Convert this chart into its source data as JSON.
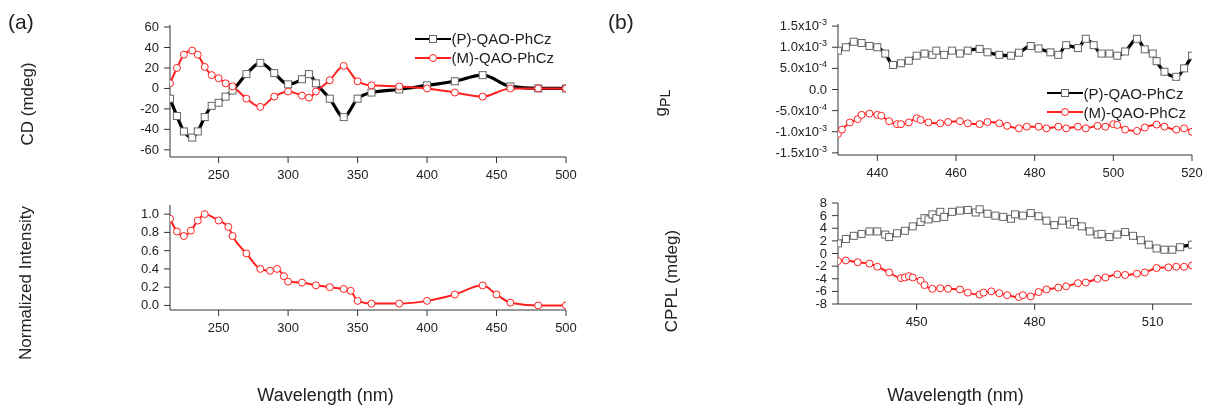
{
  "chart_data": [
    {
      "type": "line",
      "ylabel": "CD (mdeg)",
      "annotations": [
        "(a)"
      ],
      "xlim": [
        215,
        500
      ],
      "xticks": [
        250,
        300,
        350,
        400,
        450,
        500
      ],
      "ylim": [
        -67,
        62
      ],
      "yticks": [
        -60,
        -40,
        -20,
        0,
        20,
        40,
        60
      ],
      "legend": "top right",
      "line_style": "solid",
      "x": [
        215,
        220,
        225,
        231,
        235,
        240,
        245,
        250,
        255,
        260,
        270,
        280,
        290,
        300,
        310,
        315,
        320,
        330,
        340,
        350,
        360,
        380,
        400,
        420,
        440,
        460,
        480,
        500
      ],
      "series": [
        {
          "name": "(P)-QAO-PhCz",
          "color": "#000000",
          "marker": "square",
          "values": [
            -10,
            -27,
            -42,
            -48,
            -42,
            -28,
            -17,
            -14,
            -8,
            -2,
            14,
            25,
            15,
            4,
            9,
            14,
            5,
            -10,
            -28,
            -10,
            -4,
            -1,
            3,
            7,
            13,
            2,
            0,
            0
          ]
        },
        {
          "name": "(M)-QAO-PhCz",
          "color": "#ff2020",
          "marker": "circle",
          "values": [
            5,
            20,
            33,
            37,
            33,
            21,
            13,
            10,
            5,
            2,
            -10,
            -18,
            -8,
            -3,
            -7,
            -9,
            -3,
            8,
            22,
            7,
            3,
            2,
            0,
            -4,
            -8,
            0,
            0,
            0
          ]
        }
      ]
    },
    {
      "type": "line",
      "xlabel": "Wavelength (nm)",
      "ylabel": "Normalized Intensity",
      "xlim": [
        215,
        500
      ],
      "xticks": [
        250,
        300,
        350,
        400,
        450,
        500
      ],
      "ylim": [
        -0.05,
        1.1
      ],
      "yticks": [
        {
          "value": 0,
          "label": "0.0"
        },
        0.2,
        0.4,
        0.6,
        0.8,
        {
          "value": 1,
          "label": "1.0"
        }
      ],
      "line_style": "solid",
      "x": [
        215,
        220,
        225,
        230,
        235,
        240,
        250,
        257,
        260,
        270,
        280,
        287,
        292,
        297,
        300,
        310,
        320,
        330,
        340,
        345,
        350,
        360,
        380,
        400,
        420,
        440,
        450,
        460,
        480,
        500
      ],
      "series": [
        {
          "color": "#ff2020",
          "marker": "circle",
          "values": [
            0.95,
            0.81,
            0.76,
            0.82,
            0.93,
            1.0,
            0.93,
            0.86,
            0.76,
            0.57,
            0.4,
            0.38,
            0.4,
            0.32,
            0.26,
            0.25,
            0.22,
            0.2,
            0.18,
            0.16,
            0.05,
            0.02,
            0.02,
            0.05,
            0.12,
            0.22,
            0.12,
            0.03,
            0.0,
            0.0
          ]
        }
      ]
    },
    {
      "type": "line",
      "ylabel": "g$_{PL}$",
      "annotations": [
        "(b)"
      ],
      "xlim": [
        430,
        520
      ],
      "xticks": [
        440,
        460,
        480,
        500,
        520
      ],
      "ylim": [
        -0.00155,
        0.00155
      ],
      "yticks": [
        {
          "value": -0.0015,
          "label": "-1.5x10$^{-3}$"
        },
        {
          "value": -0.001,
          "label": "-1.0x10$^{-3}$"
        },
        {
          "value": -0.0005,
          "label": "-5.0x10$^{-4}$"
        },
        {
          "value": 0,
          "label": "0.0"
        },
        {
          "value": 0.0005,
          "label": "5.0x10$^{-4}$"
        },
        {
          "value": 0.001,
          "label": "1.0x10$^{-3}$"
        },
        {
          "value": 0.0015,
          "label": "1.5x10$^{-3}$"
        }
      ],
      "legend": "right",
      "line_style": "solid",
      "series": [
        {
          "name": "(P)-QAO-PhCz",
          "color": "#000000",
          "marker": "square",
          "x": [
            430,
            432,
            434,
            436,
            438,
            440,
            442,
            444,
            446,
            448,
            450,
            452,
            454,
            455,
            457,
            459,
            461,
            463,
            466,
            468,
            471,
            474,
            476,
            479,
            481,
            484,
            486,
            488,
            491,
            493,
            495,
            497,
            499,
            501,
            503,
            506,
            508,
            510,
            511,
            513,
            516,
            518,
            520
          ],
          "values": [
            0.00092,
            0.001,
            0.00113,
            0.0011,
            0.00103,
            0.001,
            0.00085,
            0.00058,
            0.00062,
            0.00068,
            0.0008,
            0.00085,
            0.00082,
            0.00092,
            0.00082,
            0.00092,
            0.00085,
            0.00092,
            0.00096,
            0.00088,
            0.00082,
            0.0008,
            0.00087,
            0.00103,
            0.00097,
            0.00088,
            0.00082,
            0.00105,
            0.00098,
            0.0012,
            0.00105,
            0.00085,
            0.00085,
            0.0008,
            0.0009,
            0.0012,
            0.00095,
            0.00085,
            0.00067,
            0.00042,
            0.0003,
            0.0005,
            0.0008
          ]
        },
        {
          "name": "(M)-QAO-PhCz",
          "color": "#ff2020",
          "marker": "circle",
          "x": [
            430,
            431,
            433,
            435,
            436,
            438,
            440,
            441,
            443,
            445,
            446,
            448,
            450,
            451,
            453,
            456,
            458,
            461,
            463,
            466,
            468,
            471,
            473,
            476,
            478,
            481,
            483,
            486,
            488,
            491,
            493,
            496,
            498,
            500,
            501,
            503,
            506,
            508,
            511,
            513,
            516,
            518,
            520
          ],
          "values": [
            -0.00105,
            -0.00095,
            -0.00078,
            -0.0007,
            -0.0006,
            -0.00057,
            -0.0006,
            -0.00062,
            -0.00075,
            -0.00082,
            -0.00082,
            -0.00078,
            -0.00068,
            -0.00072,
            -0.00078,
            -0.0008,
            -0.00077,
            -0.00075,
            -0.0008,
            -0.00082,
            -0.00077,
            -0.0008,
            -0.00086,
            -0.00092,
            -0.00088,
            -0.00088,
            -0.00092,
            -0.00088,
            -0.00092,
            -0.00088,
            -0.00092,
            -0.00086,
            -0.00088,
            -0.00082,
            -0.00084,
            -0.00095,
            -0.00098,
            -0.0009,
            -0.00083,
            -0.00088,
            -0.00095,
            -0.00092,
            -0.001
          ]
        }
      ]
    },
    {
      "type": "line",
      "xlabel": "Wavelength (nm)",
      "ylabel": "CPPL (mdeg)",
      "xlim": [
        430,
        520
      ],
      "xticks": [
        450,
        480,
        510
      ],
      "ylim": [
        -8,
        8
      ],
      "yticks": [
        -8,
        -6,
        -4,
        -2,
        0,
        2,
        4,
        6,
        8
      ],
      "line_style": "solid",
      "series": [
        {
          "color": "#000000",
          "marker": "square",
          "x": [
            430,
            432,
            434,
            436,
            438,
            440,
            442,
            443,
            445,
            447,
            449,
            451,
            452,
            453,
            454,
            455,
            456,
            457,
            459,
            461,
            463,
            465,
            466,
            468,
            470,
            472,
            474,
            475,
            477,
            479,
            481,
            483,
            485,
            487,
            489,
            490,
            492,
            494,
            496,
            497,
            499,
            501,
            503,
            505,
            507,
            509,
            511,
            513,
            515,
            517,
            520
          ],
          "values": [
            1.6,
            2.3,
            2.8,
            3.1,
            3.5,
            3.5,
            3.0,
            2.6,
            3.2,
            3.6,
            4.3,
            5.0,
            5.6,
            5.4,
            6.2,
            5.6,
            6.6,
            5.8,
            6.6,
            6.8,
            6.9,
            6.5,
            7.0,
            6.3,
            6.0,
            5.8,
            5.5,
            6.2,
            6.0,
            6.4,
            5.9,
            5.2,
            4.5,
            5.2,
            4.6,
            5.0,
            4.3,
            3.5,
            3.0,
            3.1,
            2.6,
            3.0,
            3.4,
            2.8,
            2.1,
            1.4,
            0.8,
            0.6,
            0.6,
            1.0,
            1.4
          ]
        },
        {
          "color": "#ff2020",
          "marker": "circle",
          "x": [
            430,
            432,
            435,
            438,
            440,
            443,
            446,
            447,
            448,
            449,
            451,
            452,
            454,
            456,
            458,
            461,
            463,
            466,
            467,
            469,
            471,
            473,
            476,
            477,
            479,
            481,
            483,
            486,
            488,
            491,
            493,
            496,
            498,
            501,
            503,
            506,
            508,
            511,
            514,
            516,
            518,
            520
          ],
          "values": [
            -1.2,
            -1.1,
            -1.4,
            -1.6,
            -2.1,
            -3.0,
            -3.9,
            -3.8,
            -3.6,
            -3.8,
            -4.3,
            -5.0,
            -5.6,
            -5.5,
            -5.6,
            -5.7,
            -6.2,
            -6.5,
            -6.2,
            -6.0,
            -6.3,
            -6.6,
            -6.9,
            -6.6,
            -6.8,
            -6.1,
            -5.7,
            -5.4,
            -5.2,
            -4.7,
            -4.6,
            -4.0,
            -3.8,
            -3.3,
            -3.4,
            -3.2,
            -3.0,
            -2.3,
            -2.2,
            -2.1,
            -2.1,
            -1.9
          ]
        }
      ]
    }
  ]
}
